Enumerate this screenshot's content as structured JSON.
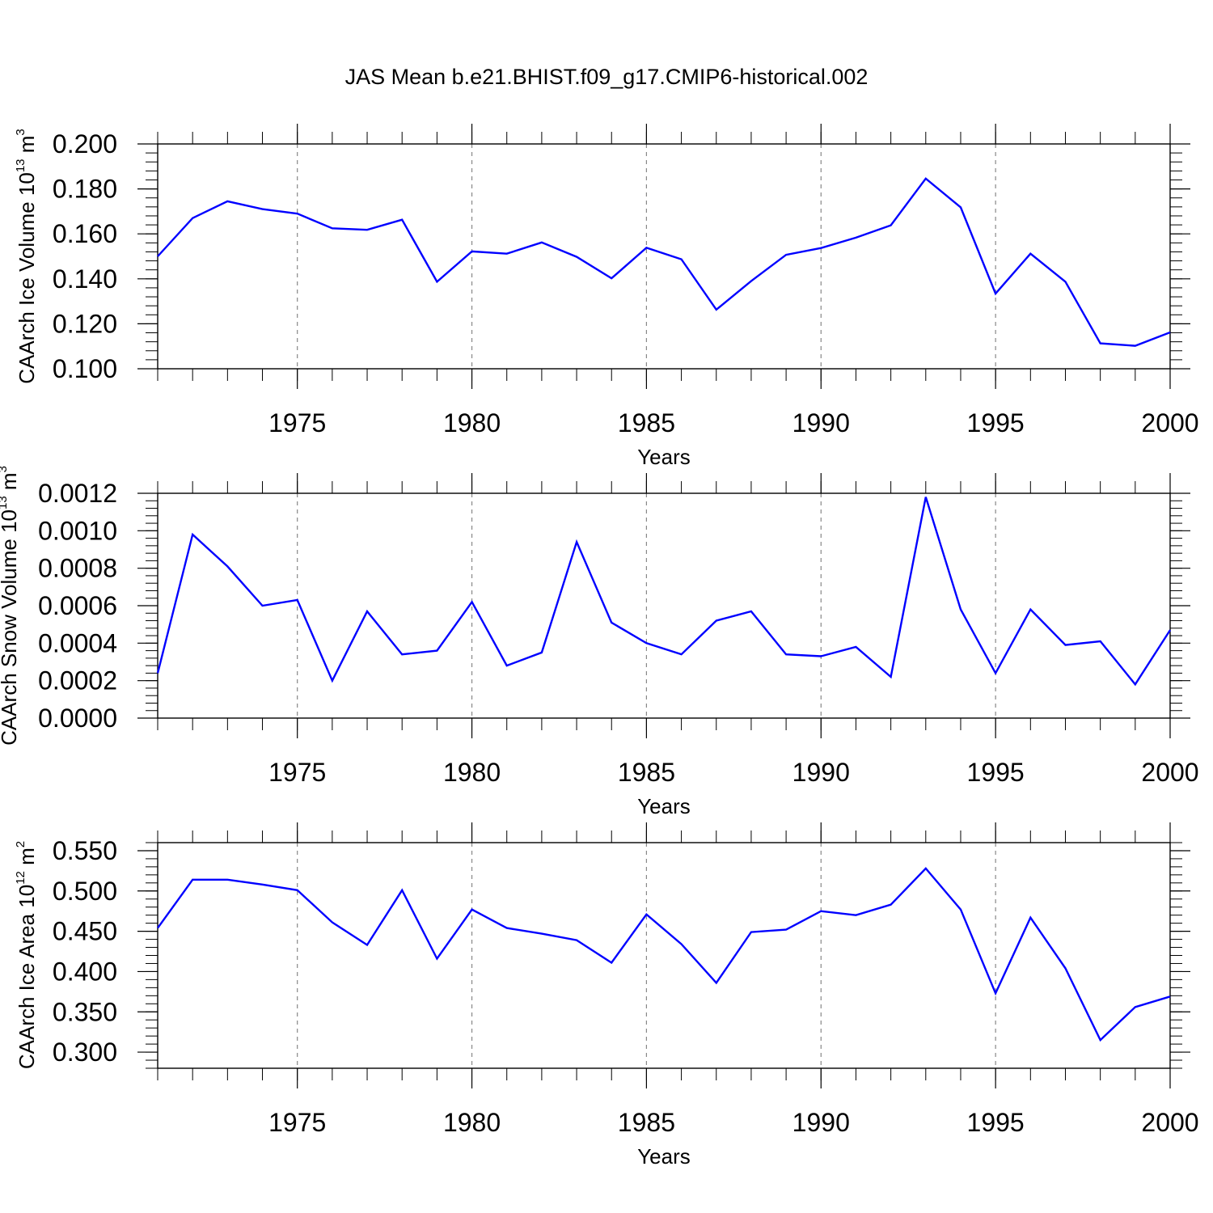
{
  "title": "JAS Mean b.e21.BHIST.f09_g17.CMIP6-historical.002",
  "colors": {
    "line": "#0000ff",
    "axis": "#000000",
    "grid": "#888888"
  },
  "chart_data": [
    {
      "type": "line",
      "ylabel_main": "CAArch Ice Volume 10",
      "ylabel_exp1": "13",
      "ylabel_mid": " m",
      "ylabel_exp2": "3",
      "xlabel": "Years",
      "xlim": [
        1971,
        2000
      ],
      "ylim": [
        0.1,
        0.2
      ],
      "yticks": [
        0.1,
        0.12,
        0.14,
        0.16,
        0.18,
        0.2
      ],
      "yticklabels": [
        "0.100",
        "0.120",
        "0.140",
        "0.160",
        "0.180",
        "0.200"
      ],
      "xticks": [
        1975,
        1980,
        1985,
        1990,
        1995,
        2000
      ],
      "xticklabels": [
        "1975",
        "1980",
        "1985",
        "1990",
        "1995",
        "2000"
      ],
      "grid": "dashed vertical at major x ticks",
      "x": [
        1971,
        1972,
        1973,
        1974,
        1975,
        1976,
        1977,
        1978,
        1979,
        1980,
        1981,
        1982,
        1983,
        1984,
        1985,
        1986,
        1987,
        1988,
        1989,
        1990,
        1991,
        1992,
        1993,
        1994,
        1995,
        1996,
        1997,
        1998,
        1999,
        2000
      ],
      "y": [
        0.15,
        0.167,
        0.1745,
        0.171,
        0.169,
        0.1625,
        0.1618,
        0.1663,
        0.1387,
        0.1522,
        0.1512,
        0.1562,
        0.1498,
        0.1402,
        0.1538,
        0.1487,
        0.1263,
        0.139,
        0.1507,
        0.1537,
        0.1583,
        0.1638,
        0.1846,
        0.1718,
        0.1334,
        0.1512,
        0.1387,
        0.1113,
        0.1102,
        0.1162
      ]
    },
    {
      "type": "line",
      "ylabel_main": "CAArch Snow Volume 10",
      "ylabel_exp1": "13",
      "ylabel_mid": " m",
      "ylabel_exp2": "3",
      "xlabel": "Years",
      "xlim": [
        1971,
        2000
      ],
      "ylim": [
        0.0,
        0.0012
      ],
      "yticks": [
        0.0,
        0.0002,
        0.0004,
        0.0006,
        0.0008,
        0.001,
        0.0012
      ],
      "yticklabels": [
        "0.0000",
        "0.0002",
        "0.0004",
        "0.0006",
        "0.0008",
        "0.0010",
        "0.0012"
      ],
      "xticks": [
        1975,
        1980,
        1985,
        1990,
        1995,
        2000
      ],
      "xticklabels": [
        "1975",
        "1980",
        "1985",
        "1990",
        "1995",
        "2000"
      ],
      "grid": "dashed vertical at major x ticks",
      "x": [
        1971,
        1972,
        1973,
        1974,
        1975,
        1976,
        1977,
        1978,
        1979,
        1980,
        1981,
        1982,
        1983,
        1984,
        1985,
        1986,
        1987,
        1988,
        1989,
        1990,
        1991,
        1992,
        1993,
        1994,
        1995,
        1996,
        1997,
        1998,
        1999,
        2000
      ],
      "y": [
        0.00024,
        0.00098,
        0.00081,
        0.0006,
        0.00063,
        0.0002,
        0.00057,
        0.00034,
        0.00036,
        0.00062,
        0.00028,
        0.00035,
        0.00094,
        0.00051,
        0.0004,
        0.00034,
        0.00052,
        0.00057,
        0.00034,
        0.00033,
        0.00038,
        0.00022,
        0.00118,
        0.00058,
        0.00024,
        0.00058,
        0.00039,
        0.00041,
        0.00018,
        0.00047
      ]
    },
    {
      "type": "line",
      "ylabel_main": "CAArch Ice Area 10",
      "ylabel_exp1": "12",
      "ylabel_mid": " m",
      "ylabel_exp2": "2",
      "xlabel": "Years",
      "xlim": [
        1971,
        2000
      ],
      "ylim": [
        0.28,
        0.56
      ],
      "yticks": [
        0.3,
        0.35,
        0.4,
        0.45,
        0.5,
        0.55
      ],
      "yticklabels": [
        "0.300",
        "0.350",
        "0.400",
        "0.450",
        "0.500",
        "0.550"
      ],
      "xticks": [
        1975,
        1980,
        1985,
        1990,
        1995,
        2000
      ],
      "xticklabels": [
        "1975",
        "1980",
        "1985",
        "1990",
        "1995",
        "2000"
      ],
      "grid": "dashed vertical at major x ticks",
      "x": [
        1971,
        1972,
        1973,
        1974,
        1975,
        1976,
        1977,
        1978,
        1979,
        1980,
        1981,
        1982,
        1983,
        1984,
        1985,
        1986,
        1987,
        1988,
        1989,
        1990,
        1991,
        1992,
        1993,
        1994,
        1995,
        1996,
        1997,
        1998,
        1999,
        2000
      ],
      "y": [
        0.454,
        0.514,
        0.514,
        0.508,
        0.501,
        0.461,
        0.433,
        0.501,
        0.416,
        0.477,
        0.454,
        0.447,
        0.439,
        0.411,
        0.471,
        0.434,
        0.386,
        0.449,
        0.452,
        0.475,
        0.47,
        0.483,
        0.528,
        0.477,
        0.373,
        0.467,
        0.404,
        0.315,
        0.356,
        0.369
      ]
    }
  ]
}
